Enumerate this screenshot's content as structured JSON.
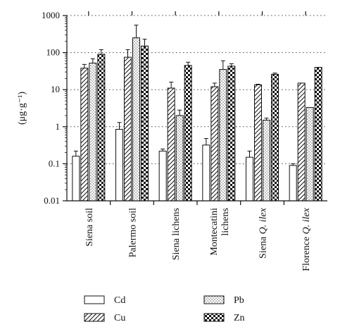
{
  "chart_data": {
    "type": "bar",
    "yscale": "log",
    "ylim": [
      0.01,
      1000
    ],
    "ylabel": "(μg·g⁻¹)",
    "yticks": [
      "0.01",
      "0.1",
      "1",
      "10",
      "100",
      "1000"
    ],
    "grid": "horizontal dotted",
    "legend_position": "bottom",
    "categories": [
      {
        "label": "Siena soil",
        "italic": ""
      },
      {
        "label": "Palermo soil",
        "italic": ""
      },
      {
        "label": "Siena lichens",
        "italic": ""
      },
      {
        "label": "Montecatini\nlichens",
        "italic": ""
      },
      {
        "label": "Siena ",
        "italic": "Q. ilex"
      },
      {
        "label": "Florence ",
        "italic": "Q. ilex"
      }
    ],
    "series": [
      {
        "name": "Cd",
        "pattern": "plain",
        "values": [
          0.16,
          0.85,
          0.22,
          0.32,
          0.15,
          0.09
        ],
        "errors": [
          0.22,
          1.3,
          0.25,
          0.48,
          0.22,
          0.1
        ]
      },
      {
        "name": "Cu",
        "pattern": "hatch",
        "values": [
          38,
          75,
          11,
          12,
          13.5,
          15
        ],
        "errors": [
          48,
          120,
          16,
          15,
          14,
          15
        ]
      },
      {
        "name": "Pb",
        "pattern": "dots",
        "values": [
          52,
          250,
          2.0,
          35,
          1.5,
          3.3
        ],
        "errors": [
          68,
          550,
          2.8,
          60,
          1.7,
          3.3
        ]
      },
      {
        "name": "Zn",
        "pattern": "checker",
        "values": [
          90,
          150,
          45,
          43,
          26,
          40
        ],
        "errors": [
          120,
          230,
          55,
          50,
          28,
          40
        ]
      }
    ]
  }
}
